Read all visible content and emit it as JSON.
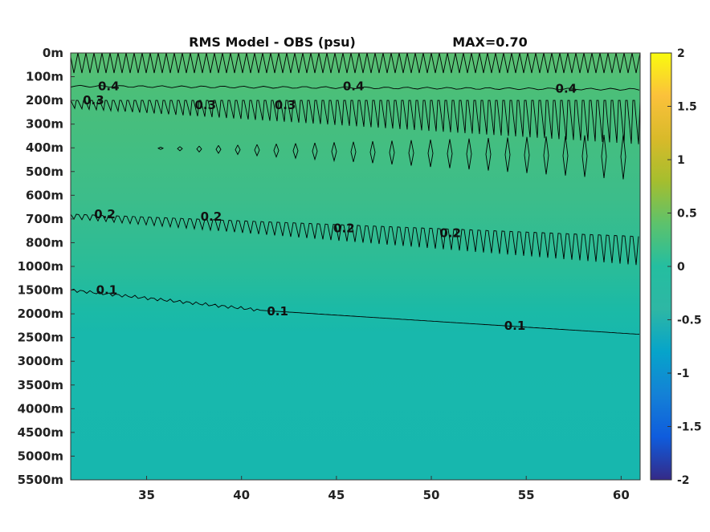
{
  "chart_data": {
    "type": "heatmap",
    "title_left": "RMS Model - OBS (psu)",
    "title_right": "MAX=0.70",
    "x_ticks": [
      35,
      40,
      45,
      50,
      55,
      60
    ],
    "x_range": [
      31,
      61
    ],
    "y_tick_labels": [
      "0m",
      "100m",
      "200m",
      "300m",
      "400m",
      "500m",
      "600m",
      "700m",
      "800m",
      "1000m",
      "1500m",
      "2000m",
      "2500m",
      "3000m",
      "3500m",
      "4000m",
      "4500m",
      "5000m",
      "5500m"
    ],
    "colorbar": {
      "range": [
        -2,
        2
      ],
      "ticks": [
        2,
        1.5,
        1,
        0.5,
        0,
        -0.5,
        -1,
        -1.5,
        -2
      ],
      "tick_labels": [
        "2",
        "1.5",
        "1",
        "0.5",
        "0",
        "-0.5",
        "-1",
        "-1.5",
        "-2"
      ]
    },
    "field_bands": [
      {
        "depth": "0m-100m",
        "value": 0.45
      },
      {
        "depth": "100m-200m",
        "value": 0.38
      },
      {
        "depth": "200m-600m",
        "value": 0.3
      },
      {
        "depth": "600m-1000m",
        "value": 0.22
      },
      {
        "depth": "1000m-2000m",
        "value": 0.14
      },
      {
        "depth": "2000m-5500m",
        "value": 0.06
      }
    ],
    "contour_levels": [
      0.4,
      0.3,
      0.2,
      0.1
    ],
    "contour_labels": [
      {
        "text": "0.4",
        "x": 33,
        "depth_index": 1.4
      },
      {
        "text": "0.4",
        "x": 45.9,
        "depth_index": 1.4
      },
      {
        "text": "0.4",
        "x": 57.1,
        "depth_index": 1.5
      },
      {
        "text": "0.3",
        "x": 32.2,
        "depth_index": 2.0
      },
      {
        "text": "0.3",
        "x": 38.1,
        "depth_index": 2.2
      },
      {
        "text": "0.3",
        "x": 42.3,
        "depth_index": 2.2
      },
      {
        "text": "0.2",
        "x": 32.8,
        "depth_index": 6.8
      },
      {
        "text": "0.2",
        "x": 38.4,
        "depth_index": 6.9
      },
      {
        "text": "0.2",
        "x": 45.4,
        "depth_index": 7.4
      },
      {
        "text": "0.2",
        "x": 51,
        "depth_index": 7.6
      },
      {
        "text": "0.1",
        "x": 32.9,
        "depth_index": 10.0
      },
      {
        "text": "0.1",
        "x": 41.9,
        "depth_index": 10.9
      },
      {
        "text": "0.1",
        "x": 54.4,
        "depth_index": 11.5
      }
    ]
  }
}
